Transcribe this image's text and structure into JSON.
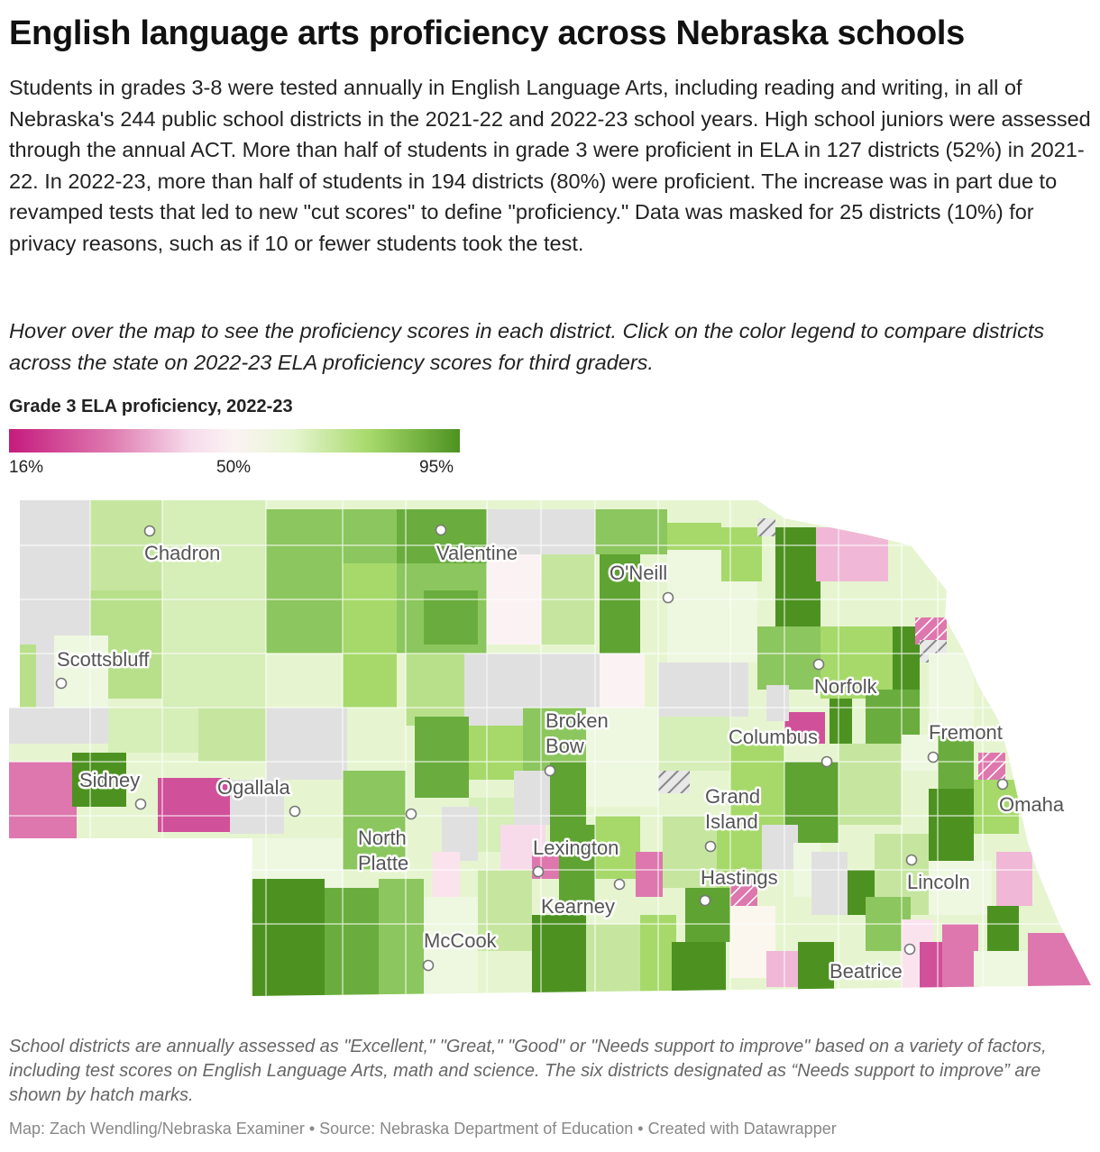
{
  "title": "English language arts proficiency across Nebraska schools",
  "description": "Students in grades 3-8 were tested annually in English Language Arts, including reading and writing, in all of Nebraska's 244 public school districts in the 2021-22 and 2022-23 school years. High school juniors were assessed through the annual ACT. More than half of students in grade 3 were proficient in ELA in 127 districts (52%) in 2021-22. In 2022-23, more than half of students in 194 districts (80%) were proficient. The increase was in part due to revamped tests that led to new \"cut scores\" to define \"proficiency.\" Data was masked for 25 districts (10%) for privacy reasons, such as if 10 or fewer students took the test.",
  "instructions": "Hover over the map to see the proficiency scores in each district. Click on the color legend to compare districts across the state on 2022-23 ELA proficiency scores for third graders.",
  "legend": {
    "title": "Grade 3 ELA proficiency, 2022-23",
    "min_label": "16%",
    "mid_label": "50%",
    "max_label": "95%",
    "colors": [
      "#c51b7d",
      "#de77ae",
      "#f7dbeb",
      "#fbf3f3",
      "#e6f5d0",
      "#a6d96a",
      "#4d9221"
    ]
  },
  "colors": {
    "no_data": "#e0e0e0",
    "hatch": "#888888"
  },
  "cities": [
    {
      "name": "Chadron",
      "label": "Chadron"
    },
    {
      "name": "Valentine",
      "label": "Valentine"
    },
    {
      "name": "O'Neill",
      "label": "O'Neill"
    },
    {
      "name": "Scottsbluff",
      "label": "Scottsbluff"
    },
    {
      "name": "Norfolk",
      "label": "Norfolk"
    },
    {
      "name": "Broken Bow",
      "label_lines": [
        "Broken",
        "Bow"
      ]
    },
    {
      "name": "Columbus",
      "label": "Columbus"
    },
    {
      "name": "Fremont",
      "label": "Fremont"
    },
    {
      "name": "Sidney",
      "label": "Sidney"
    },
    {
      "name": "Ogallala",
      "label": "Ogallala"
    },
    {
      "name": "Omaha",
      "label": "Omaha"
    },
    {
      "name": "Grand Island",
      "label_lines": [
        "Grand",
        "Island"
      ]
    },
    {
      "name": "North Platte",
      "label_lines": [
        "North",
        "Platte"
      ]
    },
    {
      "name": "Lexington",
      "label": "Lexington"
    },
    {
      "name": "Hastings",
      "label": "Hastings"
    },
    {
      "name": "Lincoln",
      "label": "Lincoln"
    },
    {
      "name": "Kearney",
      "label": "Kearney"
    },
    {
      "name": "McCook",
      "label": "McCook"
    },
    {
      "name": "Beatrice",
      "label": "Beatrice"
    }
  ],
  "footnote": "School districts are annually assessed as \"Excellent,\" \"Great,\" \"Good\" or \"Needs support to improve\" based on a variety of factors, including test scores on English Language Arts, math and science. The six districts designated as “Needs support to improve” are shown by hatch marks.",
  "credit": "Map: Zach Wendling/Nebraska Examiner • Source: Nebraska Department of Education • Created with Datawrapper"
}
